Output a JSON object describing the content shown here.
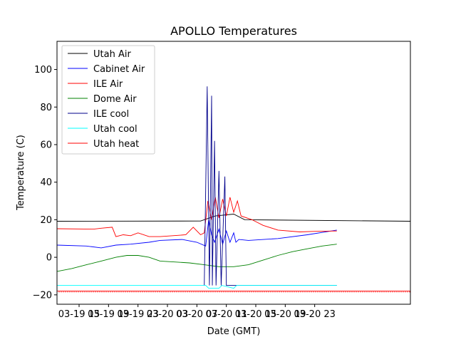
{
  "chart_data": {
    "type": "line",
    "title": "APOLLO Temperatures",
    "xlabel": "Date (GMT)",
    "ylabel": "Temperature (C)",
    "xlim": [
      12.0,
      60.0
    ],
    "ylim": [
      -25,
      115
    ],
    "grid": false,
    "legend_position": "upper-left",
    "y_ticks": [
      {
        "value": -20,
        "label": "−20"
      },
      {
        "value": 0,
        "label": "0"
      },
      {
        "value": 20,
        "label": "20"
      },
      {
        "value": 40,
        "label": "40"
      },
      {
        "value": 60,
        "label": "60"
      },
      {
        "value": 80,
        "label": "80"
      },
      {
        "value": 100,
        "label": "100"
      }
    ],
    "x_ticks": [
      {
        "value": 15,
        "label": "03-19 15"
      },
      {
        "value": 19,
        "label": "03-19 19"
      },
      {
        "value": 23,
        "label": "03-19 23"
      },
      {
        "value": 27,
        "label": "03-20 03"
      },
      {
        "value": 31,
        "label": "03-20 07"
      },
      {
        "value": 35,
        "label": "03-20 11"
      },
      {
        "value": 39,
        "label": "03-20 15"
      },
      {
        "value": 43,
        "label": "03-20 19"
      },
      {
        "value": 47,
        "label": "03-20 23"
      }
    ],
    "series": [
      {
        "name": "Utah Air",
        "color": "#000000",
        "kind": "line",
        "x": [
          12.0,
          31.5,
          33.5,
          36.0,
          37.5,
          60.0
        ],
        "y": [
          19.2,
          19.3,
          22.0,
          23.0,
          20.0,
          19.2
        ]
      },
      {
        "name": "Cabinet Air",
        "color": "#0000ff",
        "kind": "line",
        "x": [
          12.0,
          16.0,
          18.0,
          20.0,
          22.0,
          24.5,
          26.0,
          29.0,
          31.0,
          32.2,
          32.6,
          33.0,
          33.4,
          34.0,
          34.5,
          35.0,
          35.5,
          36.0,
          36.3,
          36.7,
          38.0,
          42.0,
          46.0,
          50.0
        ],
        "y": [
          6.5,
          6.0,
          5.0,
          6.5,
          7.0,
          8.0,
          9.0,
          9.5,
          8.0,
          6.0,
          20.0,
          12.0,
          8.0,
          15.0,
          7.0,
          14.0,
          8.0,
          13.0,
          8.0,
          9.5,
          9.0,
          10.0,
          12.0,
          14.5
        ]
      },
      {
        "name": "ILE Air",
        "color": "#ff0000",
        "kind": "line",
        "x": [
          12.0,
          17.0,
          18.0,
          19.5,
          20.0,
          21.0,
          22.0,
          23.0,
          24.5,
          26.0,
          29.5,
          30.5,
          31.5,
          32.0,
          32.5,
          33.0,
          33.5,
          34.0,
          34.5,
          35.0,
          35.5,
          36.0,
          36.5,
          37.0,
          38.5,
          40.0,
          42.0,
          45.0,
          47.0,
          50.0
        ],
        "y": [
          15.2,
          15.0,
          15.5,
          16.0,
          11.0,
          12.0,
          11.5,
          13.0,
          11.0,
          11.0,
          12.0,
          16.0,
          12.0,
          13.0,
          30.0,
          20.0,
          32.0,
          21.0,
          31.0,
          22.0,
          32.0,
          24.0,
          30.0,
          22.0,
          20.0,
          17.0,
          14.5,
          13.5,
          13.8,
          14.0
        ]
      },
      {
        "name": "Dome Air",
        "color": "#008000",
        "kind": "line",
        "x": [
          12.0,
          14.0,
          16.0,
          18.0,
          20.0,
          21.5,
          23.0,
          24.5,
          26.0,
          28.0,
          30.0,
          32.0,
          34.0,
          36.0,
          38.0,
          40.0,
          42.0,
          44.0,
          46.0,
          48.0,
          50.0
        ],
        "y": [
          -7.5,
          -6.0,
          -4.0,
          -2.0,
          0.0,
          1.0,
          1.0,
          0.0,
          -2.0,
          -2.5,
          -3.0,
          -4.0,
          -5.0,
          -5.0,
          -4.0,
          -1.5,
          1.0,
          3.0,
          4.5,
          6.0,
          7.0
        ]
      },
      {
        "name": "ILE cool",
        "color": "#00008b",
        "kind": "line",
        "x": [
          32.0,
          32.4,
          32.7,
          33.0,
          33.1,
          33.4,
          33.6,
          34.0,
          34.3,
          34.8,
          35.0,
          36.0,
          50.0
        ],
        "y": [
          -15.0,
          91.0,
          -15.0,
          86.0,
          -15.0,
          62.0,
          -15.0,
          46.0,
          -15.0,
          43.0,
          -15.0,
          -15.0,
          -15.0
        ]
      },
      {
        "name": "Utah cool",
        "color": "#00ffff",
        "kind": "line",
        "x": [
          12.0,
          32.2,
          32.6,
          34.0,
          34.4,
          36.0,
          36.4,
          50.0
        ],
        "y": [
          -15.0,
          -15.0,
          -16.5,
          -16.5,
          -15.0,
          -16.5,
          -15.0,
          -15.0
        ]
      },
      {
        "name": "Utah heat",
        "color": "#ff0000",
        "kind": "comb",
        "x": [
          12.0,
          60.0
        ],
        "y": [
          -18.0,
          -18.0
        ]
      }
    ]
  }
}
